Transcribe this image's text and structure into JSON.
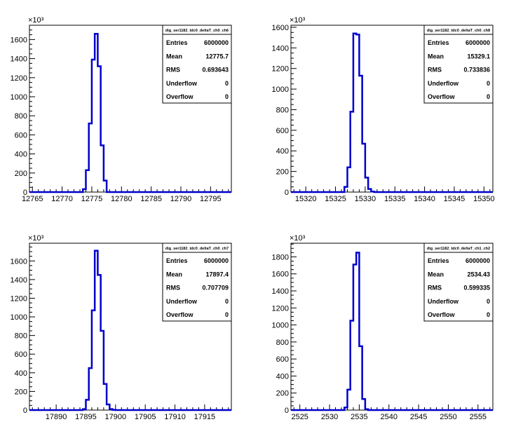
{
  "chart_data": [
    {
      "type": "histogram",
      "stats_title": "dig_ser1182_tdc0_deltaT_ch0_ch6",
      "stats": [
        {
          "key": "Entries",
          "value": "6000000"
        },
        {
          "key": "Mean",
          "value": "12775.7"
        },
        {
          "key": "RMS",
          "value": "0.693643"
        },
        {
          "key": "Underflow",
          "value": "0"
        },
        {
          "key": "Overflow",
          "value": "0"
        }
      ],
      "y_multiplier": "×10³",
      "xlim": [
        12764.5,
        12798.5
      ],
      "ylim": [
        0,
        1750
      ],
      "xticks": [
        12765,
        12770,
        12775,
        12780,
        12785,
        12790,
        12795
      ],
      "yticks": [
        0,
        200,
        400,
        600,
        800,
        1000,
        1200,
        1400,
        1600
      ],
      "bin_edges": [
        12773.5,
        12774.0,
        12774.5,
        12775.0,
        12775.5,
        12776.0,
        12776.5,
        12777.0,
        12777.5
      ],
      "values": [
        30,
        230,
        720,
        1390,
        1660,
        1320,
        490,
        120
      ]
    },
    {
      "type": "histogram",
      "stats_title": "dig_ser1182_tdc0_deltaT_ch0_ch8",
      "stats": [
        {
          "key": "Entries",
          "value": "6000000"
        },
        {
          "key": "Mean",
          "value": "15329.1"
        },
        {
          "key": "RMS",
          "value": "0.733836"
        },
        {
          "key": "Underflow",
          "value": "0"
        },
        {
          "key": "Overflow",
          "value": "0"
        }
      ],
      "y_multiplier": "×10³",
      "xlim": [
        15317.5,
        15351.5
      ],
      "ylim": [
        0,
        1620
      ],
      "xticks": [
        15320,
        15325,
        15330,
        15335,
        15340,
        15345,
        15350
      ],
      "yticks": [
        0,
        200,
        400,
        600,
        800,
        1000,
        1200,
        1400,
        1600
      ],
      "bin_edges": [
        15326.5,
        15327.0,
        15327.5,
        15328.0,
        15328.5,
        15329.0,
        15329.5,
        15330.0,
        15330.5,
        15331.0,
        15331.5
      ],
      "values": [
        50,
        240,
        780,
        1540,
        1530,
        1130,
        470,
        140,
        30,
        5
      ]
    },
    {
      "type": "histogram",
      "stats_title": "dig_ser1182_tdc0_deltaT_ch0_ch7",
      "stats": [
        {
          "key": "Entries",
          "value": "6000000"
        },
        {
          "key": "Mean",
          "value": "17897.4"
        },
        {
          "key": "RMS",
          "value": "0.707709"
        },
        {
          "key": "Underflow",
          "value": "0"
        },
        {
          "key": "Overflow",
          "value": "0"
        }
      ],
      "y_multiplier": "×10³",
      "xlim": [
        17885.5,
        17919.5
      ],
      "ylim": [
        0,
        1790
      ],
      "xticks": [
        17890,
        17895,
        17900,
        17905,
        17910,
        17915
      ],
      "yticks": [
        0,
        200,
        400,
        600,
        800,
        1000,
        1200,
        1400,
        1600
      ],
      "bin_edges": [
        17894.5,
        17895.0,
        17895.5,
        17896.0,
        17896.5,
        17897.0,
        17897.5,
        17898.0,
        17898.5,
        17899.0,
        17899.5,
        17900.0
      ],
      "values": [
        10,
        110,
        450,
        1070,
        1710,
        1450,
        850,
        280,
        60,
        10,
        2
      ]
    },
    {
      "type": "histogram",
      "stats_title": "dig_ser1182_tdc0_deltaT_ch1_ch2",
      "stats": [
        {
          "key": "Entries",
          "value": "6000000"
        },
        {
          "key": "Mean",
          "value": "2534.43"
        },
        {
          "key": "RMS",
          "value": "0.599335"
        },
        {
          "key": "Underflow",
          "value": "0"
        },
        {
          "key": "Overflow",
          "value": "0"
        }
      ],
      "y_multiplier": "×10³",
      "xlim": [
        2523.5,
        2557.5
      ],
      "ylim": [
        0,
        1960
      ],
      "xticks": [
        2525,
        2530,
        2535,
        2540,
        2545,
        2550,
        2555
      ],
      "yticks": [
        0,
        200,
        400,
        600,
        800,
        1000,
        1200,
        1400,
        1600,
        1800
      ],
      "bin_edges": [
        2532.5,
        2533.0,
        2533.5,
        2534.0,
        2534.5,
        2535.0,
        2535.5,
        2536.0,
        2536.5
      ],
      "values": [
        30,
        240,
        1050,
        1710,
        1850,
        750,
        130,
        10
      ]
    }
  ]
}
